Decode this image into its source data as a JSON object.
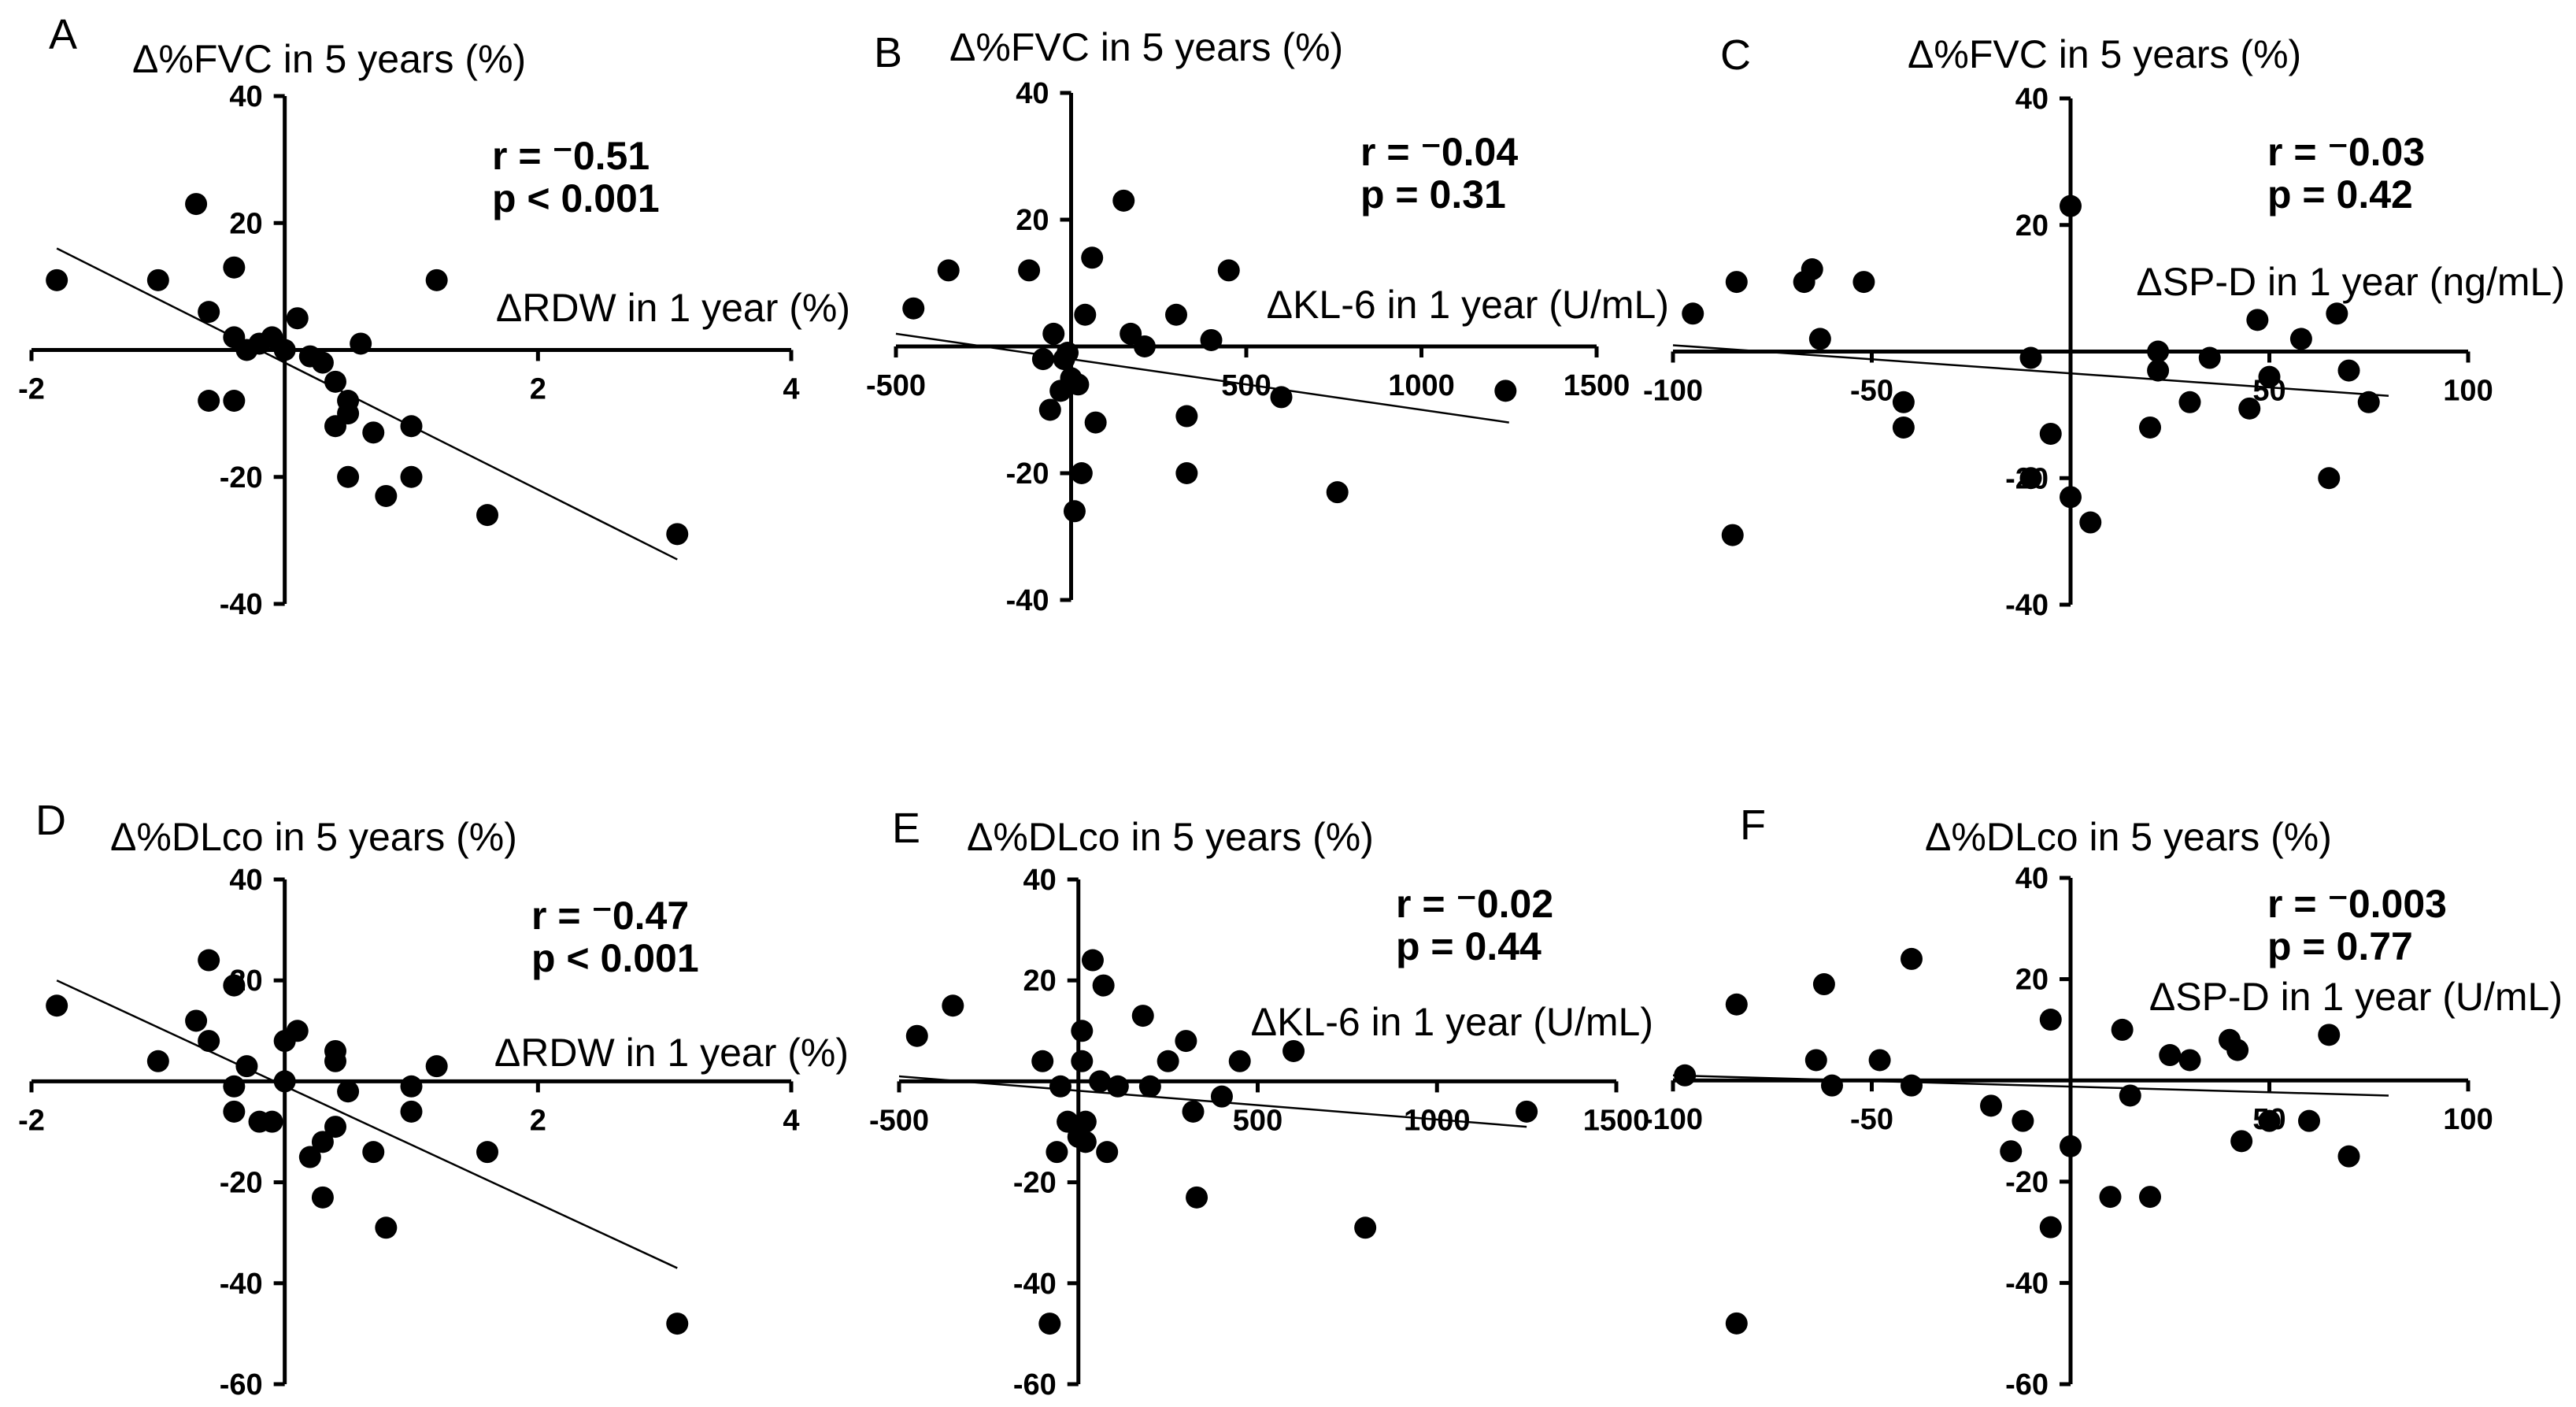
{
  "chart_data": [
    {
      "type": "scatter",
      "panel": "A",
      "ytitle": "Δ%FVC in 5 years (%)",
      "xtitle": "ΔRDW in 1 year (%)",
      "r": "r = ⁻0.51",
      "p": "p < 0.001",
      "xlim": [
        -2,
        4
      ],
      "ylim": [
        -40,
        40
      ],
      "xticks": [
        "-2",
        "2",
        "4"
      ],
      "yticks": [
        "40",
        "20",
        "-20",
        "-40"
      ],
      "points": [
        [
          -1.8,
          11
        ],
        [
          -1.0,
          11
        ],
        [
          -0.7,
          23
        ],
        [
          -0.6,
          6
        ],
        [
          -0.6,
          -8
        ],
        [
          -0.4,
          13
        ],
        [
          -0.4,
          2
        ],
        [
          -0.4,
          -8
        ],
        [
          -0.3,
          0
        ],
        [
          -0.2,
          1
        ],
        [
          -0.1,
          2
        ],
        [
          0,
          0
        ],
        [
          0.1,
          5
        ],
        [
          0.2,
          -1
        ],
        [
          0.3,
          -2
        ],
        [
          0.4,
          -5
        ],
        [
          0.4,
          -12
        ],
        [
          0.5,
          -10
        ],
        [
          0.5,
          -8
        ],
        [
          0.5,
          -20
        ],
        [
          0.6,
          1
        ],
        [
          0.7,
          -13
        ],
        [
          0.8,
          -23
        ],
        [
          1.0,
          -12
        ],
        [
          1.0,
          -20
        ],
        [
          1.2,
          11
        ],
        [
          1.6,
          -26
        ],
        [
          3.1,
          -29
        ]
      ],
      "fit": [
        [
          -1.8,
          16
        ],
        [
          3.1,
          -33
        ]
      ]
    },
    {
      "type": "scatter",
      "panel": "B",
      "ytitle": "Δ%FVC in 5 years (%)",
      "xtitle": "ΔKL-6 in 1 year (U/mL)",
      "r": "r = ⁻0.04",
      "p": "p = 0.31",
      "xlim": [
        -500,
        1500
      ],
      "ylim": [
        -40,
        40
      ],
      "xticks": [
        "-500",
        "500",
        "1000",
        "1500"
      ],
      "yticks": [
        "40",
        "20",
        "-20",
        "-40"
      ],
      "points": [
        [
          -450,
          6
        ],
        [
          -350,
          12
        ],
        [
          -120,
          12
        ],
        [
          -80,
          -2
        ],
        [
          -60,
          -10
        ],
        [
          -50,
          2
        ],
        [
          -30,
          -7
        ],
        [
          -20,
          -2
        ],
        [
          -10,
          -1
        ],
        [
          0,
          -5
        ],
        [
          10,
          -26
        ],
        [
          20,
          -6
        ],
        [
          30,
          -20
        ],
        [
          40,
          5
        ],
        [
          60,
          14
        ],
        [
          70,
          -12
        ],
        [
          150,
          23
        ],
        [
          170,
          2
        ],
        [
          210,
          0
        ],
        [
          300,
          5
        ],
        [
          330,
          -20
        ],
        [
          330,
          -11
        ],
        [
          400,
          1
        ],
        [
          450,
          12
        ],
        [
          600,
          -8
        ],
        [
          760,
          -23
        ],
        [
          1240,
          -7
        ]
      ],
      "fit": [
        [
          -500,
          2
        ],
        [
          1250,
          -12
        ]
      ]
    },
    {
      "type": "scatter",
      "panel": "C",
      "ytitle": "Δ%FVC in 5 years (%)",
      "xtitle": "ΔSP-D in 1 year (ng/mL)",
      "r": "r = ⁻0.03",
      "p": "p = 0.42",
      "xlim": [
        -100,
        100
      ],
      "ylim": [
        -40,
        40
      ],
      "xticks": [
        "-100",
        "-50",
        "50",
        "100"
      ],
      "yticks": [
        "40",
        "20",
        "-20",
        "-40"
      ],
      "points": [
        [
          -95,
          6
        ],
        [
          -85,
          -29
        ],
        [
          -84,
          11
        ],
        [
          -67,
          11
        ],
        [
          -65,
          13
        ],
        [
          -63,
          2
        ],
        [
          -52,
          11
        ],
        [
          -42,
          -8
        ],
        [
          -42,
          -12
        ],
        [
          -10,
          -1
        ],
        [
          -10,
          -20
        ],
        [
          -5,
          -13
        ],
        [
          0,
          23
        ],
        [
          0,
          -23
        ],
        [
          5,
          -27
        ],
        [
          20,
          -12
        ],
        [
          22,
          0
        ],
        [
          22,
          -3
        ],
        [
          30,
          -8
        ],
        [
          35,
          -1
        ],
        [
          45,
          -9
        ],
        [
          47,
          5
        ],
        [
          50,
          -4
        ],
        [
          58,
          2
        ],
        [
          65,
          -20
        ],
        [
          67,
          6
        ],
        [
          70,
          -3
        ],
        [
          75,
          -8
        ]
      ],
      "fit": [
        [
          -100,
          1
        ],
        [
          80,
          -7
        ]
      ]
    },
    {
      "type": "scatter",
      "panel": "D",
      "ytitle": "Δ%DLco in 5 years (%)",
      "xtitle": "ΔRDW in 1 year (%)",
      "r": "r = ⁻0.47",
      "p": "p < 0.001",
      "xlim": [
        -2,
        4
      ],
      "ylim": [
        -60,
        40
      ],
      "xticks": [
        "-2",
        "2",
        "4"
      ],
      "yticks": [
        "40",
        "20",
        "-20",
        "-40",
        "-60"
      ],
      "points": [
        [
          -1.8,
          15
        ],
        [
          -1.0,
          4
        ],
        [
          -0.7,
          12
        ],
        [
          -0.6,
          24
        ],
        [
          -0.6,
          8
        ],
        [
          -0.4,
          19
        ],
        [
          -0.4,
          -1
        ],
        [
          -0.4,
          -6
        ],
        [
          -0.3,
          3
        ],
        [
          -0.2,
          -8
        ],
        [
          -0.1,
          -8
        ],
        [
          0,
          0
        ],
        [
          0,
          8
        ],
        [
          0.1,
          10
        ],
        [
          0.2,
          -15
        ],
        [
          0.3,
          -12
        ],
        [
          0.3,
          -23
        ],
        [
          0.4,
          -9
        ],
        [
          0.4,
          4
        ],
        [
          0.4,
          6
        ],
        [
          0.5,
          -2
        ],
        [
          0.7,
          -14
        ],
        [
          0.8,
          -29
        ],
        [
          1.0,
          -1
        ],
        [
          1.0,
          -6
        ],
        [
          1.2,
          3
        ],
        [
          1.6,
          -14
        ],
        [
          3.1,
          -48
        ]
      ],
      "fit": [
        [
          -1.8,
          20
        ],
        [
          3.1,
          -37
        ]
      ]
    },
    {
      "type": "scatter",
      "panel": "E",
      "ytitle": "Δ%DLco in 5 years (%)",
      "xtitle": "ΔKL-6 in 1 year (U/mL)",
      "r": "r = ⁻0.02",
      "p": "p = 0.44",
      "xlim": [
        -500,
        1500
      ],
      "ylim": [
        -60,
        40
      ],
      "xticks": [
        "-500",
        "500",
        "1000",
        "1500"
      ],
      "yticks": [
        "40",
        "20",
        "-20",
        "-40",
        "-60"
      ],
      "points": [
        [
          -450,
          9
        ],
        [
          -350,
          15
        ],
        [
          -100,
          4
        ],
        [
          -80,
          -48
        ],
        [
          -60,
          -14
        ],
        [
          -50,
          -1
        ],
        [
          -30,
          -8
        ],
        [
          0,
          -11
        ],
        [
          10,
          10
        ],
        [
          10,
          4
        ],
        [
          20,
          -8
        ],
        [
          20,
          -12
        ],
        [
          40,
          24
        ],
        [
          60,
          0
        ],
        [
          70,
          19
        ],
        [
          80,
          -14
        ],
        [
          110,
          -1
        ],
        [
          180,
          13
        ],
        [
          200,
          -1
        ],
        [
          250,
          4
        ],
        [
          300,
          8
        ],
        [
          320,
          -6
        ],
        [
          330,
          -23
        ],
        [
          400,
          -3
        ],
        [
          450,
          4
        ],
        [
          600,
          6
        ],
        [
          800,
          -29
        ],
        [
          1250,
          -6
        ]
      ],
      "fit": [
        [
          -500,
          1
        ],
        [
          1250,
          -9
        ]
      ]
    },
    {
      "type": "scatter",
      "panel": "F",
      "ytitle": "Δ%DLco in 5 years (%)",
      "xtitle": "ΔSP-D in 1 year (U/mL)",
      "r": "r = ⁻0.003",
      "p": "p = 0.77",
      "xlim": [
        -100,
        100
      ],
      "ylim": [
        -60,
        40
      ],
      "xticks": [
        "-100",
        "-50",
        "50",
        "100"
      ],
      "yticks": [
        "40",
        "20",
        "-20",
        "-40",
        "-60"
      ],
      "points": [
        [
          -97,
          1
        ],
        [
          -84,
          15
        ],
        [
          -84,
          -48
        ],
        [
          -64,
          4
        ],
        [
          -62,
          19
        ],
        [
          -60,
          -1
        ],
        [
          -48,
          4
        ],
        [
          -40,
          24
        ],
        [
          -40,
          -1
        ],
        [
          -20,
          -5
        ],
        [
          -15,
          -14
        ],
        [
          -12,
          -8
        ],
        [
          -5,
          12
        ],
        [
          -5,
          -29
        ],
        [
          0,
          -13
        ],
        [
          10,
          -23
        ],
        [
          13,
          10
        ],
        [
          15,
          -3
        ],
        [
          20,
          -23
        ],
        [
          25,
          5
        ],
        [
          30,
          4
        ],
        [
          40,
          8
        ],
        [
          42,
          6
        ],
        [
          43,
          -12
        ],
        [
          50,
          -8
        ],
        [
          60,
          -8
        ],
        [
          65,
          9
        ],
        [
          70,
          -15
        ]
      ],
      "fit": [
        [
          -100,
          1
        ],
        [
          80,
          -3
        ]
      ]
    }
  ]
}
